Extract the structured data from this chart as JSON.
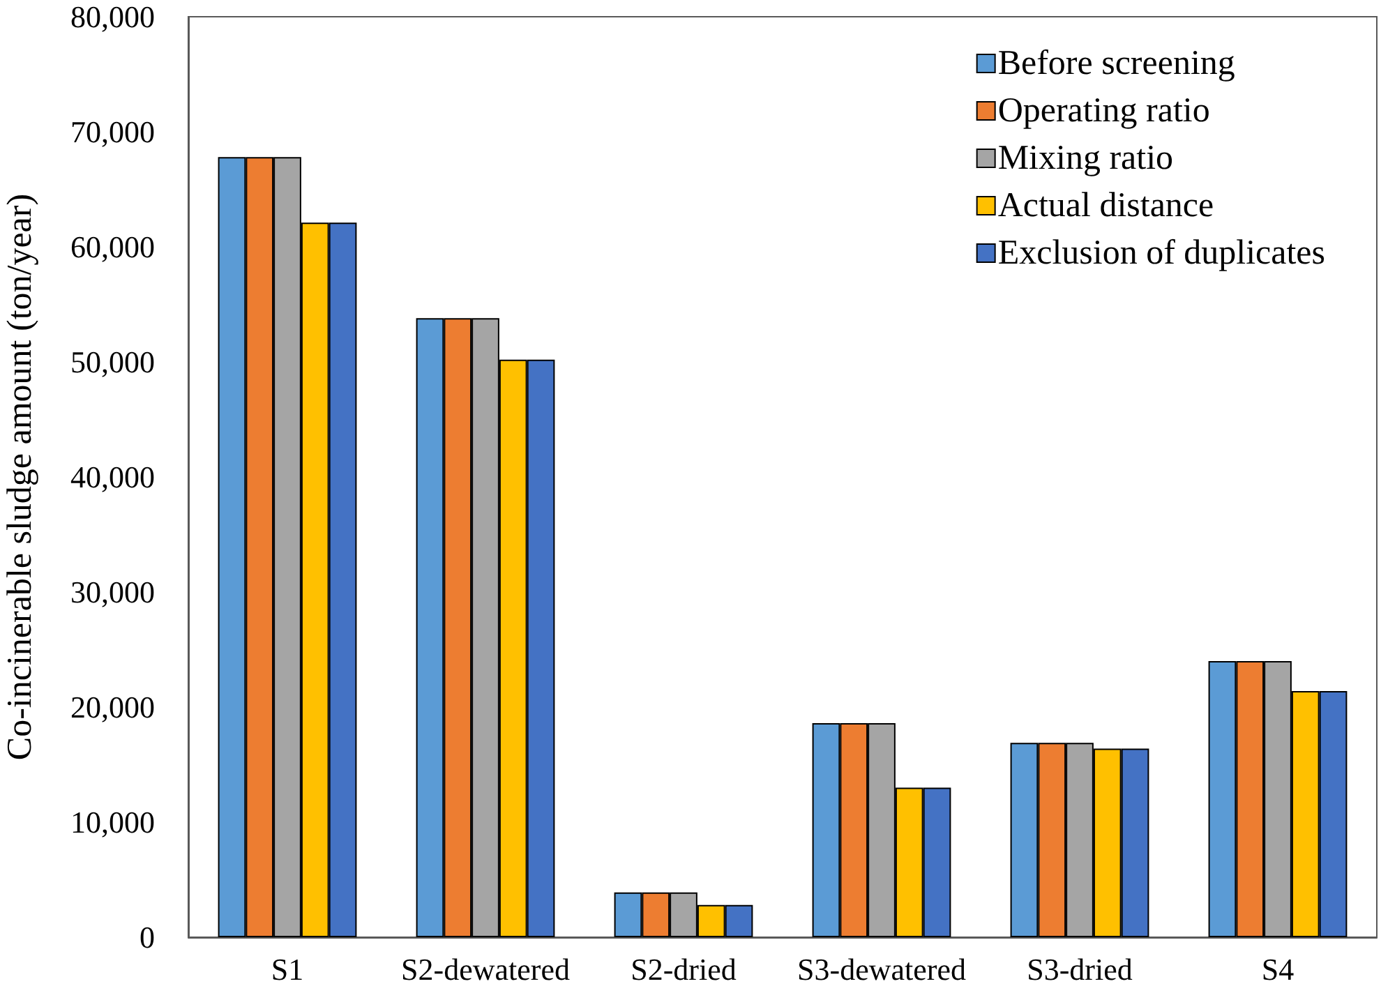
{
  "chart_data": {
    "type": "bar",
    "ylabel": "Co-incinerable sludge amount (ton/year)",
    "categories": [
      "S1",
      "S2-dewatered",
      "S2-dried",
      "S3-dewatered",
      "S3-dried",
      "S4"
    ],
    "series": [
      {
        "name": "Before screening",
        "color": "#5b9bd5",
        "values": [
          67800,
          53800,
          3900,
          18600,
          16900,
          24000
        ]
      },
      {
        "name": "Operating ratio",
        "color": "#ed7d31",
        "values": [
          67800,
          53800,
          3900,
          18600,
          16900,
          24000
        ]
      },
      {
        "name": "Mixing ratio",
        "color": "#a5a5a5",
        "values": [
          67800,
          53800,
          3900,
          18600,
          16900,
          24000
        ]
      },
      {
        "name": "Actual distance",
        "color": "#ffc000",
        "values": [
          62100,
          50200,
          2800,
          13000,
          16400,
          21400
        ]
      },
      {
        "name": "Exclusion of duplicates",
        "color": "#4472c4",
        "values": [
          62100,
          50200,
          2800,
          13000,
          16400,
          21400
        ]
      }
    ],
    "ylim": [
      0,
      80000
    ],
    "yticks": [
      0,
      {
        "value": 10000,
        "label": "10,000"
      },
      {
        "value": 20000,
        "label": "20,000"
      },
      {
        "value": 30000,
        "label": "30,000"
      },
      {
        "value": 40000,
        "label": "40,000"
      },
      {
        "value": 50000,
        "label": "50,000"
      },
      {
        "value": 60000,
        "label": "60,000"
      },
      {
        "value": 70000,
        "label": "70,000"
      },
      {
        "value": 80000,
        "label": "80,000"
      }
    ],
    "grid": false,
    "legend": "top right"
  }
}
